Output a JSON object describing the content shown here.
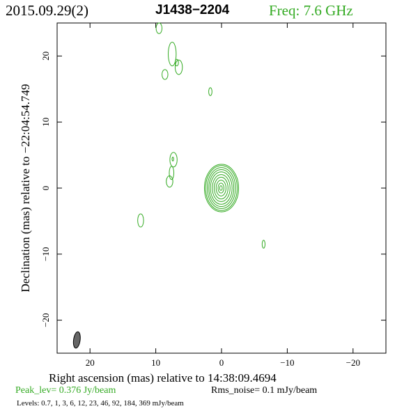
{
  "header": {
    "date": "2015.09.29(2)",
    "source": "J1438−2204",
    "frequency": "Freq: 7.6 GHz"
  },
  "footer": {
    "peak": "Peak_lev=  0.376 Jy/beam",
    "noise": "Rms_noise=  0.1 mJy/beam",
    "levels": "Levels: 0.7,    1,    3,    6,   12,   23,   46,   92, 184, 369 mJy/beam"
  },
  "colors": {
    "contour": "#33aa22",
    "beam": "#666666",
    "frame": "#000000"
  },
  "chart_data": {
    "type": "contour",
    "xlabel": "Right ascension (mas) relative to 14:38:09.4694",
    "ylabel": "Declination (mas) relative to −22:04:54.749",
    "xlim": [
      25,
      -25
    ],
    "ylim": [
      -25,
      25
    ],
    "x_ticks": [
      20,
      10,
      0,
      -10,
      -20
    ],
    "y_ticks": [
      20,
      10,
      0,
      -10,
      -20
    ],
    "x_tick_labels": [
      "20",
      "10",
      "0",
      "−10",
      "−20"
    ],
    "y_tick_labels": [
      "20",
      "10",
      "0",
      "−10",
      "−20"
    ],
    "levels_mJy_per_beam": [
      0.7,
      1,
      3,
      6,
      12,
      23,
      46,
      92,
      184,
      369
    ],
    "peak_Jy_per_beam": 0.376,
    "rms_noise_mJy_per_beam": 0.1,
    "beam": {
      "x": 22,
      "y": -23,
      "major_mas": 2.5,
      "minor_mas": 1.0
    },
    "core": {
      "x": 0,
      "y": 0,
      "levels": [
        {
          "rx": 2.6,
          "ry": 3.6
        },
        {
          "rx": 2.4,
          "ry": 3.4
        },
        {
          "rx": 2.15,
          "ry": 3.1
        },
        {
          "rx": 1.9,
          "ry": 2.8
        },
        {
          "rx": 1.65,
          "ry": 2.45
        },
        {
          "rx": 1.35,
          "ry": 2.05
        },
        {
          "rx": 1.05,
          "ry": 1.65
        },
        {
          "rx": 0.75,
          "ry": 1.2
        },
        {
          "rx": 0.45,
          "ry": 0.75
        },
        {
          "rx": 0.2,
          "ry": 0.35
        }
      ]
    },
    "components": [
      {
        "x": 9.5,
        "y": 24.2,
        "rx": 0.45,
        "ry": 0.8
      },
      {
        "x": 7.5,
        "y": 20.3,
        "rx": 0.6,
        "ry": 1.8
      },
      {
        "x": 6.5,
        "y": 18.3,
        "rx": 0.55,
        "ry": 1.1
      },
      {
        "x": 6.8,
        "y": 19.0,
        "rx": 0.25,
        "ry": 0.5
      },
      {
        "x": 8.6,
        "y": 17.2,
        "rx": 0.45,
        "ry": 0.75
      },
      {
        "x": 1.7,
        "y": 14.6,
        "rx": 0.25,
        "ry": 0.6
      },
      {
        "x": 7.3,
        "y": 4.3,
        "rx": 0.55,
        "ry": 1.1
      },
      {
        "x": 7.6,
        "y": 2.3,
        "rx": 0.35,
        "ry": 1.0
      },
      {
        "x": 7.9,
        "y": 1.0,
        "rx": 0.5,
        "ry": 0.85
      },
      {
        "x": 7.4,
        "y": 4.4,
        "rx": 0.12,
        "ry": 0.3
      },
      {
        "x": 12.3,
        "y": -4.9,
        "rx": 0.45,
        "ry": 1.0
      },
      {
        "x": -6.4,
        "y": -8.5,
        "rx": 0.22,
        "ry": 0.6
      }
    ]
  }
}
